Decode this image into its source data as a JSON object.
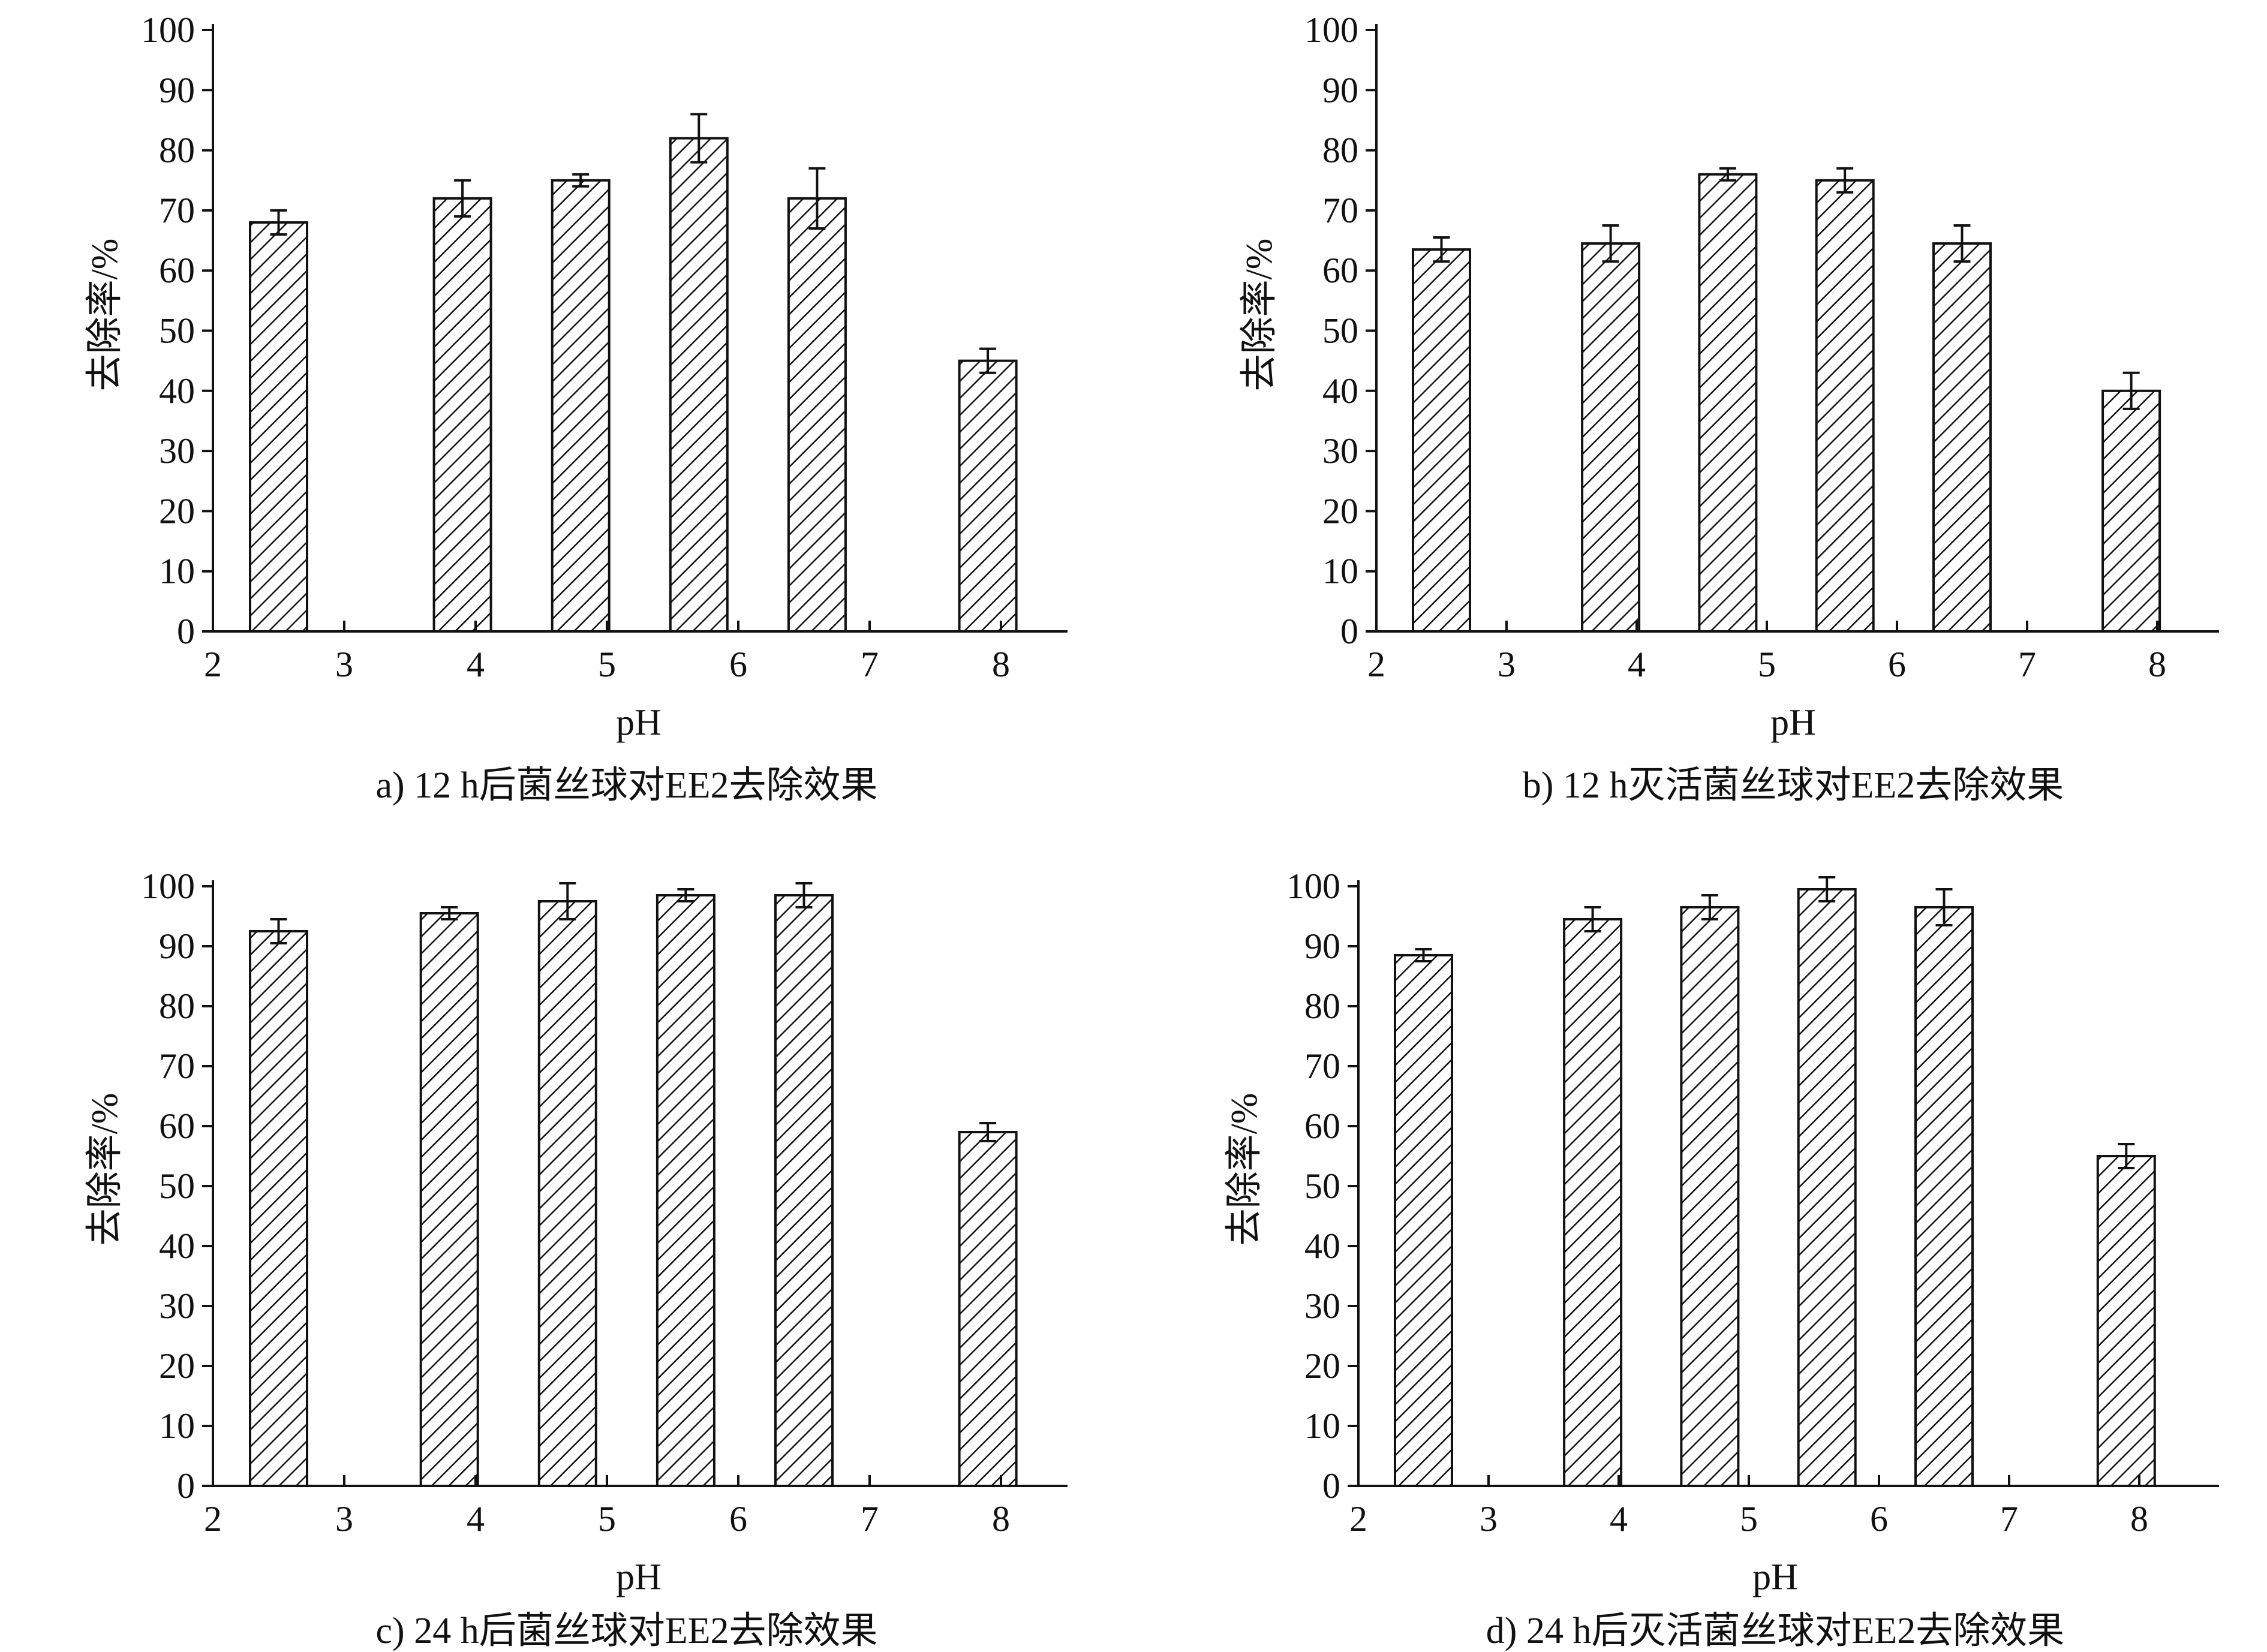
{
  "colors": {
    "axis": "#111111",
    "bar_fill": "#ffffff",
    "hatch": "#111111"
  },
  "chart_data": [
    {
      "id": "a",
      "type": "bar",
      "caption": "a) 12 h后菌丝球对EE2去除效果",
      "xlabel": "pH",
      "ylabel": "去除率/%",
      "xlim": [
        2,
        8.5
      ],
      "ylim": [
        0,
        100
      ],
      "xticks": [
        2,
        3,
        4,
        5,
        6,
        7,
        8
      ],
      "yticks": [
        0,
        10,
        20,
        30,
        40,
        50,
        60,
        70,
        80,
        90,
        100
      ],
      "pattern": "diagonal-hatch",
      "grid": false,
      "x": [
        2.5,
        3.9,
        4.8,
        5.7,
        6.6,
        7.9
      ],
      "values": [
        68,
        72,
        75,
        82,
        72,
        45
      ],
      "errors": [
        2,
        3,
        1,
        4,
        5,
        2
      ]
    },
    {
      "id": "b",
      "type": "bar",
      "caption": "b) 12 h灭活菌丝球对EE2去除效果",
      "xlabel": "pH",
      "ylabel": "去除率/%",
      "xlim": [
        2,
        8.5
      ],
      "ylim": [
        0,
        100
      ],
      "xticks": [
        2,
        3,
        4,
        5,
        6,
        7,
        8
      ],
      "yticks": [
        0,
        10,
        20,
        30,
        40,
        50,
        60,
        70,
        80,
        90,
        100
      ],
      "pattern": "diagonal-hatch",
      "grid": false,
      "x": [
        2.5,
        3.8,
        4.7,
        5.6,
        6.5,
        7.8
      ],
      "values": [
        63.5,
        64.5,
        76,
        75,
        64.5,
        40
      ],
      "errors": [
        2,
        3,
        1,
        2,
        3,
        3
      ]
    },
    {
      "id": "c",
      "type": "bar",
      "caption": "c) 24 h后菌丝球对EE2去除效果",
      "xlabel": "pH",
      "ylabel": "去除率/%",
      "xlim": [
        2,
        8.5
      ],
      "ylim": [
        0,
        100
      ],
      "xticks": [
        2,
        3,
        4,
        5,
        6,
        7,
        8
      ],
      "yticks": [
        0,
        10,
        20,
        30,
        40,
        50,
        60,
        70,
        80,
        90,
        100
      ],
      "pattern": "diagonal-hatch",
      "grid": false,
      "x": [
        2.5,
        3.8,
        4.7,
        5.6,
        6.5,
        7.9
      ],
      "values": [
        92.5,
        95.5,
        97.5,
        98.5,
        98.5,
        59
      ],
      "errors": [
        2,
        1,
        3,
        1,
        2,
        1.5
      ]
    },
    {
      "id": "d",
      "type": "bar",
      "caption": "d) 24 h后灭活菌丝球对EE2去除效果",
      "xlabel": "pH",
      "ylabel": "去除率/%",
      "xlim": [
        2,
        8.5
      ],
      "ylim": [
        0,
        100
      ],
      "xticks": [
        2,
        3,
        4,
        5,
        6,
        7,
        8
      ],
      "yticks": [
        0,
        10,
        20,
        30,
        40,
        50,
        60,
        70,
        80,
        90,
        100
      ],
      "pattern": "diagonal-hatch",
      "grid": false,
      "x": [
        2.5,
        3.8,
        4.7,
        5.6,
        6.5,
        7.9
      ],
      "values": [
        88.5,
        94.5,
        96.5,
        99.5,
        96.5,
        55
      ],
      "errors": [
        1,
        2,
        2,
        2,
        3,
        2
      ]
    }
  ]
}
